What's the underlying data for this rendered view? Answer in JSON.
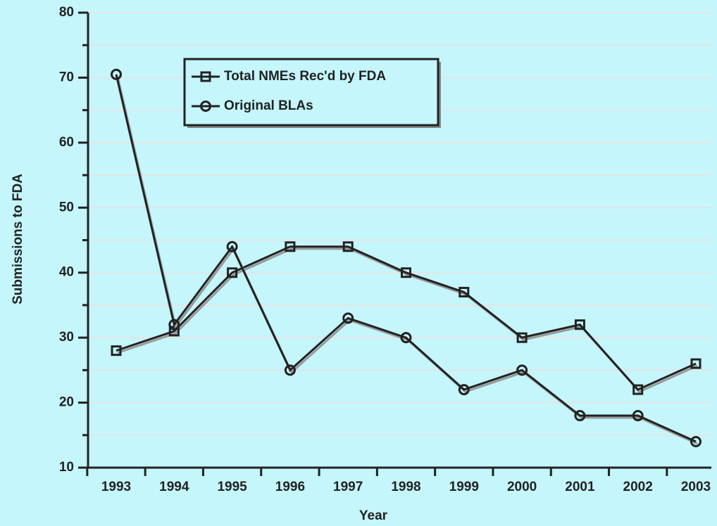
{
  "chart_data": {
    "type": "line",
    "x_label": "Year",
    "y_label": "Submissions to FDA",
    "categories": [
      "1993",
      "1994",
      "1995",
      "1996",
      "1997",
      "1998",
      "1999",
      "2000",
      "2001",
      "2002",
      "2003"
    ],
    "series": [
      {
        "name": "Total NMEs Rec'd by FDA",
        "color": "#222222",
        "marker": "square",
        "values": [
          28,
          31,
          40,
          44,
          44,
          40,
          37,
          30,
          32,
          22,
          26
        ]
      },
      {
        "name": "Original BLAs",
        "color": "#222222",
        "marker": "circle",
        "values": [
          70.5,
          32,
          44,
          25,
          33,
          30,
          22,
          25,
          18,
          18,
          14
        ]
      }
    ],
    "ylim": [
      10,
      80
    ],
    "yticks": [
      10,
      20,
      30,
      40,
      50,
      60,
      70,
      80
    ],
    "yminorticks": [
      15,
      25,
      35,
      45,
      55,
      65,
      75
    ],
    "grid": true,
    "legend": "upper left",
    "background": "#c4f6fc"
  }
}
